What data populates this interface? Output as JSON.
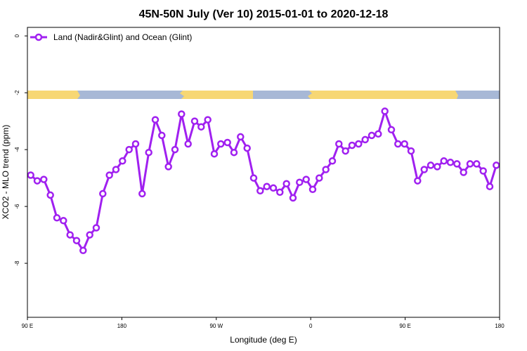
{
  "chart_data": {
    "type": "line",
    "title": "45N-50N July (Ver 10)   2015-01-01 to 2020-12-18",
    "xlabel": "Longitude (deg E)",
    "ylabel": "XCO2 - MLO trend (ppm)",
    "xlim": [
      90,
      450
    ],
    "ylim": [
      -9.9,
      0.3
    ],
    "x_tick_values": [
      90,
      180,
      270,
      360,
      450,
      540
    ],
    "x_tick_labels": [
      "90 E",
      "180",
      "90 W",
      "0",
      "90 E",
      "180"
    ],
    "y_tick_values": [
      0,
      -2,
      -4,
      -6,
      -8
    ],
    "y_tick_labels": [
      "0",
      "-2",
      "-4",
      "-6",
      "-8"
    ],
    "legend_position": "top-left",
    "grid": false,
    "series": [
      {
        "name": "Land (Nadir&Glint) and Ocean (Glint)",
        "color": "#a020f0",
        "x": [
          92.5,
          97.5,
          102.5,
          107.5,
          112.5,
          117.5,
          122.5,
          127.5,
          132.5,
          137.5,
          142.5,
          147.5,
          152.5,
          157.5,
          162.5,
          167.5,
          172.5,
          177.5,
          182.5,
          187.5,
          192.5,
          197.5,
          202.5,
          207.5,
          212.5,
          217.5,
          222.5,
          227.5,
          232.5,
          237.5,
          242.5,
          247.5,
          252.5,
          257.5,
          262.5,
          267.5,
          272.5,
          277.5,
          282.5,
          287.5,
          292.5,
          297.5,
          302.5,
          307.5,
          312.5,
          317.5,
          322.5,
          327.5,
          332.5,
          337.5,
          342.5,
          347.5,
          352.5,
          357.5,
          362.5,
          367.5,
          372.5,
          377.5,
          382.5,
          387.5,
          392.5,
          397.5,
          402.5,
          407.5,
          412.5,
          417.5,
          422.5,
          427.5,
          432.5,
          437.5,
          442.5,
          447.5
        ],
        "y": [
          -4.9,
          -5.1,
          -5.05,
          -5.6,
          -6.4,
          -6.5,
          -7.0,
          -7.2,
          -7.55,
          -7.0,
          -6.75,
          -5.55,
          -4.9,
          -4.7,
          -4.4,
          -4.0,
          -3.8,
          -5.55,
          -4.1,
          -2.95,
          -3.5,
          -4.6,
          -4.0,
          -2.75,
          -3.8,
          -3.0,
          -3.2,
          -2.95,
          -4.15,
          -3.8,
          -3.75,
          -4.1,
          -3.55,
          -3.95,
          -5.0,
          -5.45,
          -5.3,
          -5.35,
          -5.5,
          -5.2,
          -5.7,
          -5.15,
          -5.05,
          -5.4,
          -5.0,
          -4.7,
          -4.4,
          -3.8,
          -4.05,
          -3.85,
          -3.8,
          -3.65,
          -3.5,
          -3.45,
          -2.65,
          -3.3,
          -3.8,
          -3.8,
          -4.05,
          -5.1,
          -4.7,
          -4.55,
          -4.6,
          -4.4,
          -4.45,
          -4.5,
          -4.8,
          -4.5,
          -4.5,
          -4.75,
          -5.3,
          -4.55
        ]
      }
    ]
  }
}
